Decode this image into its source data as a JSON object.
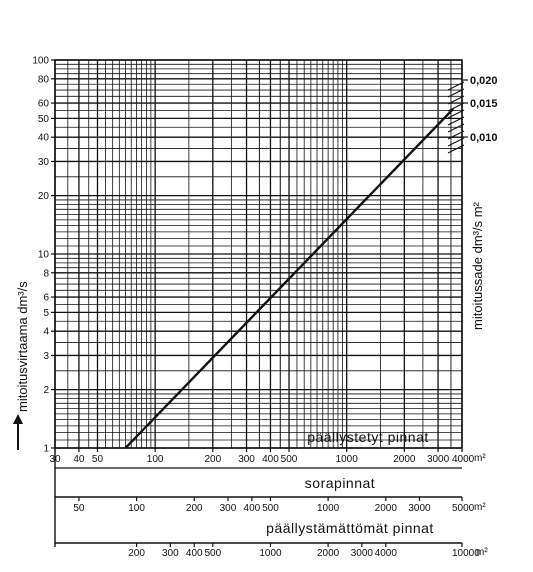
{
  "chart_data": {
    "type": "line",
    "title": "",
    "axes": {
      "y": {
        "label": "mitoitusvirtaama dm³/s",
        "scale": "log",
        "range": [
          1,
          100
        ],
        "ticks": [
          1,
          2,
          3,
          4,
          5,
          6,
          8,
          10,
          20,
          30,
          40,
          50,
          60,
          80,
          100
        ],
        "tick_labels": [
          "1",
          "2",
          "3",
          "4",
          "5",
          "6",
          "8",
          "10",
          "20",
          "30",
          "40",
          "50",
          "60",
          "80",
          "100"
        ]
      },
      "y_right": {
        "label": "mitoitussade dm³/s m²",
        "ticks": [
          0.02,
          0.015,
          0.01
        ],
        "tick_labels": [
          "0,020",
          "0,015",
          "0,010"
        ]
      },
      "x_scales": [
        {
          "name": "päällystetyt pinnat",
          "unit": "m²",
          "scale": "log",
          "range": [
            30,
            4000
          ],
          "ticks": [
            30,
            40,
            50,
            100,
            200,
            300,
            400,
            500,
            1000,
            2000,
            3000,
            4000
          ],
          "tick_labels": [
            "30",
            "40",
            "50",
            "100",
            "200",
            "300",
            "400",
            "500",
            "1000",
            "2000",
            "3000",
            "4000"
          ]
        },
        {
          "name": "sorapinnat",
          "unit": "m²",
          "scale": "log",
          "range": [
            37.5,
            5000
          ],
          "ticks": [
            50,
            100,
            200,
            300,
            400,
            500,
            1000,
            2000,
            3000,
            5000
          ],
          "tick_labels": [
            "50",
            "100",
            "200",
            "300",
            "400",
            "500",
            "1000",
            "2000",
            "3000",
            "5000"
          ]
        },
        {
          "name": "päällystämättömät pinnat",
          "unit": "m²",
          "scale": "log",
          "range": [
            75,
            10000
          ],
          "ticks": [
            200,
            300,
            400,
            500,
            1000,
            2000,
            3000,
            4000,
            10000
          ],
          "tick_labels": [
            "200",
            "300",
            "400",
            "500",
            "1000",
            "2000",
            "3000",
            "4000",
            "10000"
          ]
        }
      ]
    },
    "series": [
      {
        "x": [
          70,
          3600
        ],
        "y": [
          1,
          56
        ]
      }
    ],
    "grid": true,
    "unit_label": "m²"
  }
}
